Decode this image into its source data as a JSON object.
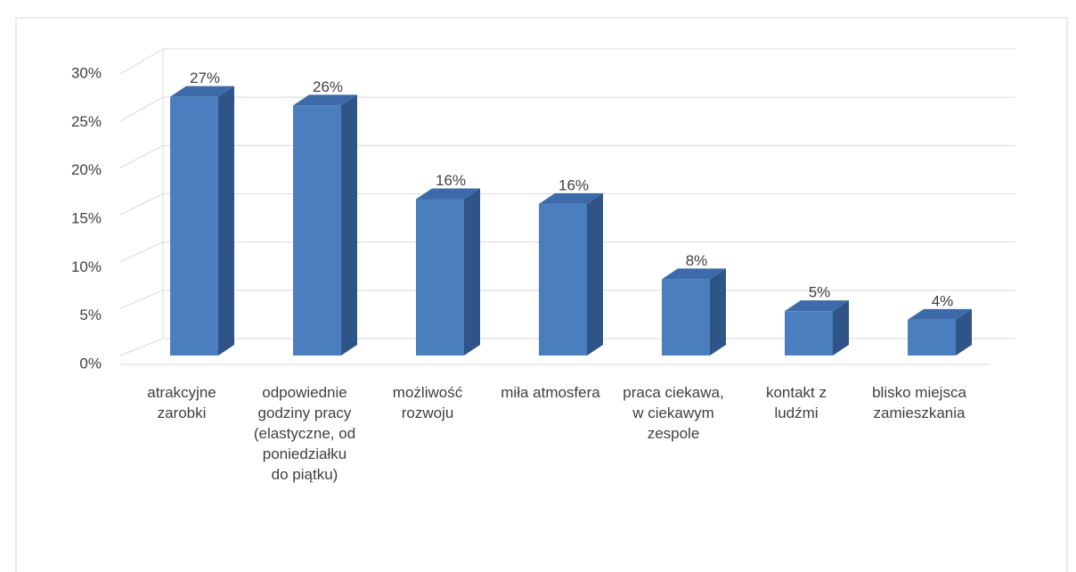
{
  "chart_data": {
    "type": "bar3d",
    "categories": [
      "atrakcyjne zarobki",
      "odpowiednie godziny pracy (elastyczne, od poniedziałku do piątku)",
      "możliwość rozwoju",
      "miła atmosfera",
      "praca ciekawa, w ciekawym zespole",
      "kontakt z ludźmi",
      "blisko miejsca zamieszkania"
    ],
    "values": [
      26.8,
      25.9,
      16.2,
      15.7,
      7.9,
      4.6,
      3.7
    ],
    "value_labels": [
      "27%",
      "26%",
      "16%",
      "16%",
      "8%",
      "5%",
      "4%"
    ],
    "color": "#4a7ebf",
    "ylim": [
      0,
      30
    ],
    "yticks": [
      {
        "value": 0,
        "label": "0%"
      },
      {
        "value": 5,
        "label": "5%"
      },
      {
        "value": 10,
        "label": "10%"
      },
      {
        "value": 15,
        "label": "15%"
      },
      {
        "value": 20,
        "label": "20%"
      },
      {
        "value": 25,
        "label": "25%"
      },
      {
        "value": 30,
        "label": "30%"
      }
    ],
    "grid": true
  }
}
